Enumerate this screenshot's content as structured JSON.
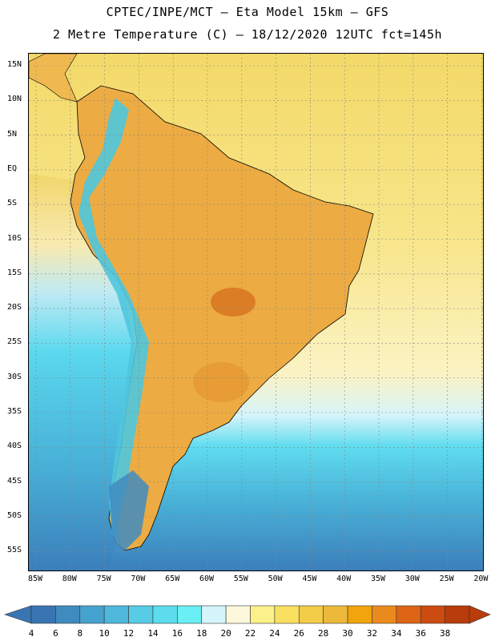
{
  "header": {
    "line1": "CPTEC/INPE/MCT –  Eta Model 15km – GFS",
    "line2": "2 Metre Temperature (C) – 18/12/2020 12UTC fct=145h"
  },
  "map": {
    "lat_labels": [
      "15N",
      "10N",
      "5N",
      "EQ",
      "5S",
      "10S",
      "15S",
      "20S",
      "25S",
      "30S",
      "35S",
      "40S",
      "45S",
      "50S",
      "55S"
    ],
    "lon_labels": [
      "85W",
      "80W",
      "75W",
      "70W",
      "65W",
      "60W",
      "55W",
      "50W",
      "45W",
      "40W",
      "35W",
      "30W",
      "25W",
      "20W"
    ],
    "colors": {
      "ocean_warm": "#f5e27a",
      "ocean_mid": "#fbf6c8",
      "ocean_cool": "#5ad8ee",
      "ocean_cold": "#3b8fc4",
      "land_hot": "#e8a035",
      "land_very_hot": "#d96f1e",
      "andes_cold": "#4fc6de"
    }
  },
  "colorbar": {
    "labels": [
      "4",
      "6",
      "8",
      "10",
      "12",
      "14",
      "16",
      "18",
      "20",
      "22",
      "24",
      "26",
      "28",
      "30",
      "32",
      "34",
      "36",
      "38"
    ],
    "colors": [
      "#3a75b3",
      "#3f8bc0",
      "#46a3cf",
      "#4fb8dc",
      "#57cce7",
      "#5ddced",
      "#69f0f4",
      "#d3f5fb",
      "#fdf8dc",
      "#fbf18a",
      "#f9e060",
      "#f3cc48",
      "#edb93a",
      "#f2a40c",
      "#ea8a1c",
      "#de6416",
      "#cc4b10",
      "#b83c0c"
    ]
  }
}
